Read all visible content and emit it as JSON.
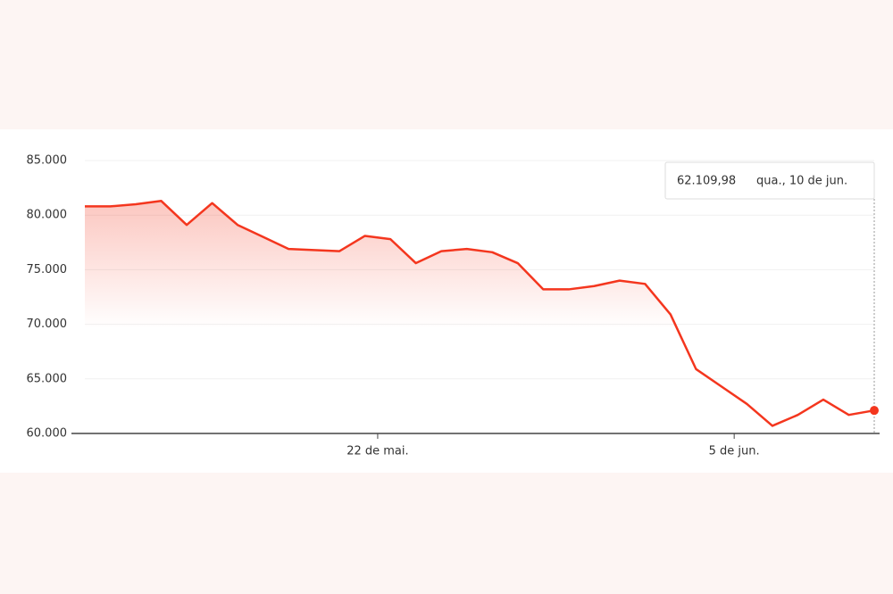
{
  "chart_data": {
    "type": "line",
    "x": [
      0,
      1,
      2,
      3,
      4,
      5,
      6,
      7,
      8,
      9,
      10,
      11,
      12,
      13,
      14,
      15,
      16,
      17,
      18,
      19,
      20,
      21,
      22,
      23,
      24,
      25,
      26,
      27,
      28,
      29,
      30,
      31
    ],
    "xlim": [
      0,
      31
    ],
    "xticks": [
      {
        "value": 11.5,
        "label": "22 de mai."
      },
      {
        "value": 25.5,
        "label": "5 de jun."
      }
    ],
    "series": [
      {
        "color": "#f4361e",
        "values": [
          80800,
          80800,
          81000,
          81300,
          79100,
          81100,
          79100,
          78000,
          76900,
          76800,
          76700,
          78100,
          77800,
          75600,
          76700,
          76900,
          76600,
          75600,
          73200,
          73200,
          73500,
          74000,
          73700,
          70900,
          65900,
          64300,
          62700,
          60700,
          61700,
          63100,
          61700,
          62109.98
        ]
      }
    ],
    "ylim": [
      60000,
      85000
    ],
    "yticks": [
      {
        "value": 60000,
        "label": "60.000"
      },
      {
        "value": 65000,
        "label": "65.000"
      },
      {
        "value": 70000,
        "label": "70.000"
      },
      {
        "value": 75000,
        "label": "75.000"
      },
      {
        "value": 80000,
        "label": "80.000"
      },
      {
        "value": 85000,
        "label": "85.000"
      }
    ],
    "grid": true,
    "tooltip": {
      "value_label": "62.109,98",
      "date": "qua., 10 de jun."
    }
  }
}
